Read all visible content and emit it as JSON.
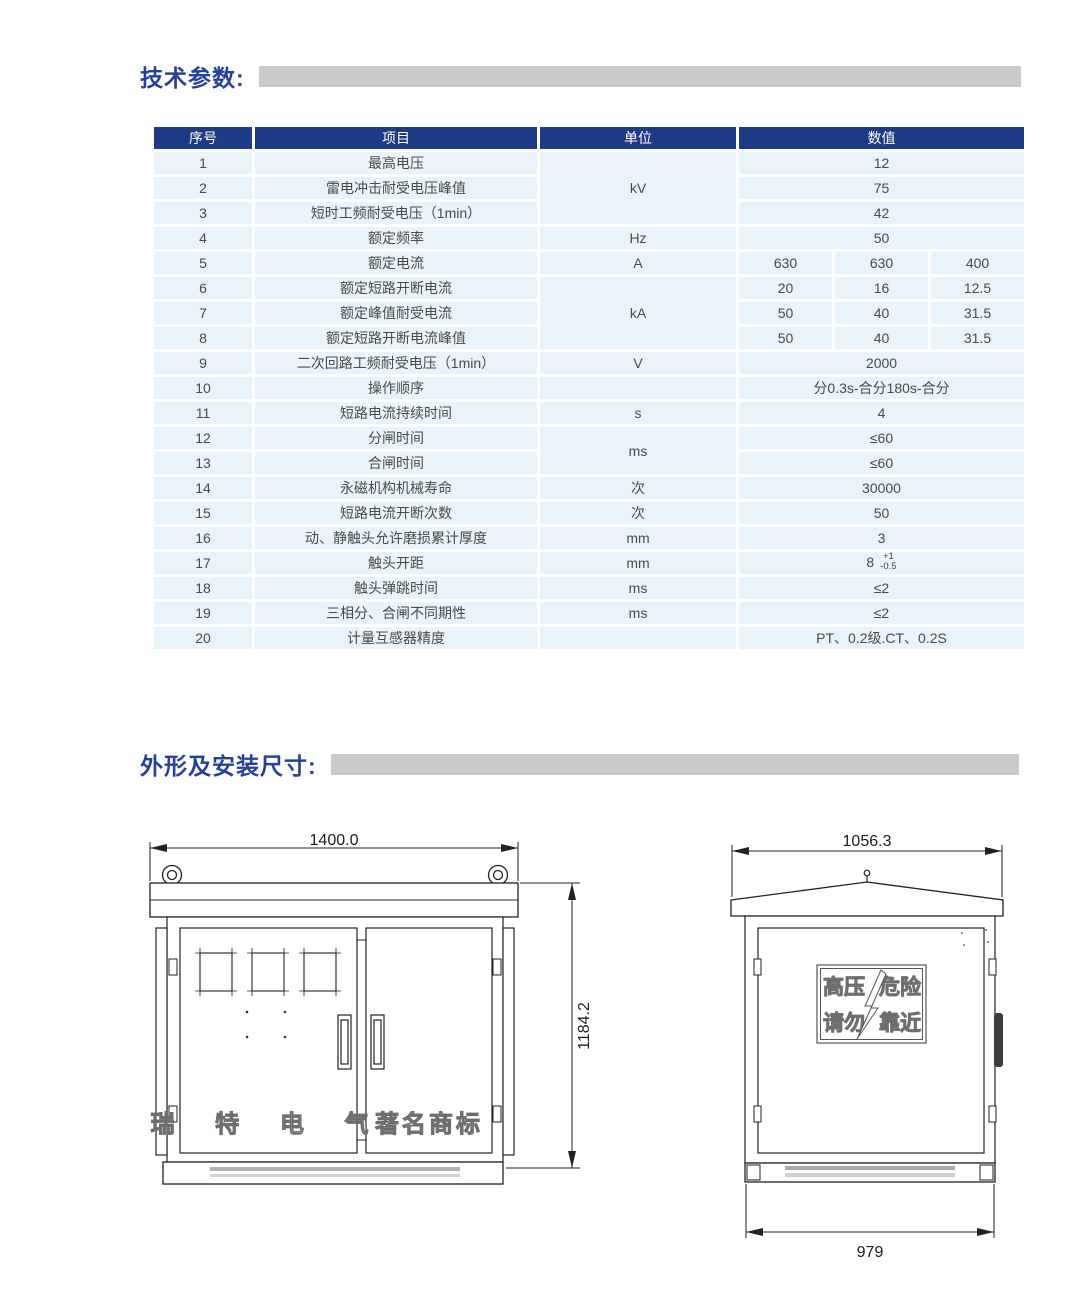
{
  "colors": {
    "accent_blue": "#27419b",
    "table_header_bg": "#1e3a85",
    "table_row_bg": "#e9f3fa",
    "section_bar_gray": "#cacaca"
  },
  "sections": [
    {
      "title": "技术参数:"
    },
    {
      "title": "外形及安装尺寸:"
    }
  ],
  "table": {
    "headers": [
      "序号",
      "项目",
      "单位",
      "数值"
    ],
    "rows": [
      {
        "no": "1",
        "item": "最高电压",
        "unit": "kV",
        "unit_rowspan": 3,
        "values": [
          "12"
        ]
      },
      {
        "no": "2",
        "item": "雷电冲击耐受电压峰值",
        "values": [
          "75"
        ]
      },
      {
        "no": "3",
        "item": "短时工频耐受电压（1min）",
        "values": [
          "42"
        ]
      },
      {
        "no": "4",
        "item": "额定频率",
        "unit": "Hz",
        "values": [
          "50"
        ]
      },
      {
        "no": "5",
        "item": "额定电流",
        "unit": "A",
        "values": [
          "630",
          "630",
          "400"
        ]
      },
      {
        "no": "6",
        "item": "额定短路开断电流",
        "unit": "kA",
        "unit_rowspan": 3,
        "values": [
          "20",
          "16",
          "12.5"
        ]
      },
      {
        "no": "7",
        "item": "额定峰值耐受电流",
        "values": [
          "50",
          "40",
          "31.5"
        ]
      },
      {
        "no": "8",
        "item": "额定短路开断电流峰值",
        "values": [
          "50",
          "40",
          "31.5"
        ]
      },
      {
        "no": "9",
        "item": "二次回路工频耐受电压（1min）",
        "unit": "V",
        "values": [
          "2000"
        ]
      },
      {
        "no": "10",
        "item": "操作顺序",
        "unit": "",
        "values": [
          "分0.3s-合分180s-合分"
        ]
      },
      {
        "no": "11",
        "item": "短路电流持续时间",
        "unit": "s",
        "values": [
          "4"
        ]
      },
      {
        "no": "12",
        "item": "分闸时间",
        "unit": "ms",
        "unit_rowspan": 2,
        "values": [
          "≤60"
        ]
      },
      {
        "no": "13",
        "item": "合闸时间",
        "values": [
          "≤60"
        ]
      },
      {
        "no": "14",
        "item": "永磁机构机械寿命",
        "unit": "次",
        "values": [
          "30000"
        ]
      },
      {
        "no": "15",
        "item": "短路电流开断次数",
        "unit": "次",
        "values": [
          "50"
        ]
      },
      {
        "no": "16",
        "item": "动、静触头允许磨损累计厚度",
        "unit": "mm",
        "values": [
          "3"
        ]
      },
      {
        "no": "17",
        "item": "触头开距",
        "unit": "mm",
        "values": [
          {
            "base": "8",
            "tol_top": "+1",
            "tol_bottom": "-0.5"
          }
        ]
      },
      {
        "no": "18",
        "item": "触头弹跳时间",
        "unit": "ms",
        "values": [
          "≤2"
        ]
      },
      {
        "no": "19",
        "item": "三相分、合闸不同期性",
        "unit": "ms",
        "values": [
          "≤2"
        ]
      },
      {
        "no": "20",
        "item": "计量互感器精度",
        "unit": "",
        "values": [
          "PT、0.2级.CT、0.2S"
        ],
        "align": "center"
      }
    ]
  },
  "drawings": {
    "front_view": {
      "width_dim": "1400.0",
      "height_dim": "1184.2",
      "left_door_text": "瑞 特 电 气",
      "right_door_text": "著名商标"
    },
    "side_view": {
      "width_dim": "1056.3",
      "base_dim": "979",
      "warning": {
        "tl": "高压",
        "tr": "危险",
        "bl": "请勿",
        "br": "靠近"
      }
    }
  }
}
